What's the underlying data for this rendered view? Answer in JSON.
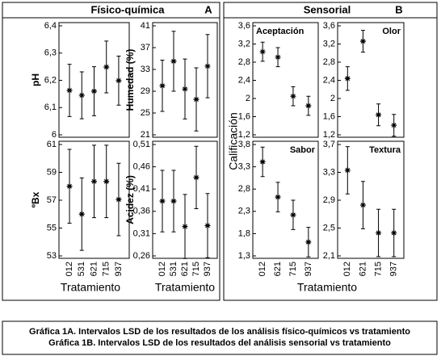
{
  "chart_data": [
    {
      "type": "errorbar",
      "y_label": "pH",
      "values": [
        6.163,
        6.145,
        6.16,
        6.249,
        6.199
      ],
      "errors": [
        0.096,
        0.086,
        0.09,
        0.095,
        0.09
      ],
      "ylim": [
        6,
        6.4
      ],
      "yticks": [
        6,
        {
          "value": 6.1,
          "label": "6,1"
        },
        {
          "value": 6.2,
          "label": "6,2"
        },
        {
          "value": 6.3,
          "label": "6,3"
        },
        {
          "value": 6.4,
          "label": "6,4"
        }
      ]
    },
    {
      "type": "errorbar",
      "y_label": "Humedad (%)",
      "values": [
        30.0,
        34.5,
        29.4,
        27.5,
        33.6
      ],
      "errors": [
        4.7,
        5.5,
        5.5,
        5.8,
        5.8
      ],
      "ylim": [
        21,
        41
      ],
      "yticks": [
        21,
        25,
        29,
        33,
        37,
        41
      ]
    },
    {
      "type": "errorbar",
      "y_label": "ºBx",
      "categories": [
        "012",
        "531",
        "621",
        "715",
        "937"
      ],
      "values": [
        58.0,
        56.0,
        58.35,
        58.35,
        57.05
      ],
      "errors": [
        2.65,
        2.6,
        2.6,
        2.6,
        2.6
      ],
      "ylim": [
        53,
        61
      ],
      "yticks": [
        53,
        55,
        57,
        59,
        61
      ]
    },
    {
      "type": "errorbar",
      "y_label": "Acidez (%)",
      "categories": [
        "012",
        "531",
        "621",
        "715",
        "937"
      ],
      "values": [
        0.383,
        0.383,
        0.326,
        0.436,
        0.328
      ],
      "errors": [
        0.069,
        0.069,
        0.072,
        0.07,
        0.072
      ],
      "ylim": [
        0.26,
        0.51
      ],
      "yticks": [
        {
          "value": 0.26,
          "label": "0,26"
        },
        {
          "value": 0.31,
          "label": "0,31"
        },
        {
          "value": 0.36,
          "label": "0,36"
        },
        {
          "value": 0.41,
          "label": "0,41"
        },
        {
          "value": 0.46,
          "label": "0,46"
        },
        {
          "value": 0.51,
          "label": "0,51"
        }
      ]
    },
    {
      "type": "errorbar",
      "title": "Aceptación",
      "values": [
        3.03,
        2.91,
        2.05,
        1.84
      ],
      "errors": [
        0.21,
        0.21,
        0.21,
        0.21
      ],
      "ylim": [
        1.2,
        3.6
      ],
      "yticks": [
        {
          "value": 1.2,
          "label": "1,2"
        },
        {
          "value": 1.6,
          "label": "1,6"
        },
        2,
        {
          "value": 2.4,
          "label": "2,4"
        },
        {
          "value": 2.8,
          "label": "2,8"
        },
        {
          "value": 3.2,
          "label": "3,2"
        },
        {
          "value": 3.6,
          "label": "3,6"
        }
      ]
    },
    {
      "type": "errorbar",
      "title": "Olor",
      "values": [
        2.44,
        3.26,
        1.64,
        1.41
      ],
      "errors": [
        0.26,
        0.24,
        0.24,
        0.24
      ],
      "ylim": [
        1.2,
        3.6
      ],
      "yticks": [
        {
          "value": 1.2,
          "label": "1,2"
        },
        {
          "value": 1.6,
          "label": "1,6"
        },
        2,
        {
          "value": 2.4,
          "label": "2,4"
        },
        {
          "value": 2.8,
          "label": "2,8"
        },
        {
          "value": 3.2,
          "label": "3,2"
        },
        {
          "value": 3.6,
          "label": "3,6"
        }
      ]
    },
    {
      "type": "errorbar",
      "title": "Sabor",
      "categories": [
        "012",
        "621",
        "715",
        "937"
      ],
      "values": [
        3.41,
        2.62,
        2.22,
        1.61
      ],
      "errors": [
        0.33,
        0.33,
        0.33,
        0.33
      ],
      "ylim": [
        1.3,
        3.8
      ],
      "yticks": [
        {
          "value": 1.3,
          "label": "1,3"
        },
        {
          "value": 1.8,
          "label": "1,8"
        },
        {
          "value": 2.3,
          "label": "2,3"
        },
        {
          "value": 2.8,
          "label": "2,8"
        },
        {
          "value": 3.3,
          "label": "3,3"
        },
        {
          "value": 3.8,
          "label": "3,8"
        }
      ]
    },
    {
      "type": "errorbar",
      "title": "Textura",
      "categories": [
        "012",
        "621",
        "715",
        "937"
      ],
      "values": [
        3.33,
        2.83,
        2.43,
        2.43
      ],
      "errors": [
        0.34,
        0.34,
        0.34,
        0.34
      ],
      "ylim": [
        2.1,
        3.7
      ],
      "yticks": [
        {
          "value": 2.1,
          "label": "2,1"
        },
        {
          "value": 2.5,
          "label": "2,5"
        },
        {
          "value": 2.9,
          "label": "2,9"
        },
        {
          "value": 3.3,
          "label": "3,3"
        },
        {
          "value": 3.7,
          "label": "3,7"
        }
      ]
    }
  ],
  "panel_groups": [
    {
      "title": "Físico-química",
      "letter": "A",
      "x_labels": [
        "Tratamiento",
        "Tratamiento"
      ]
    },
    {
      "title": "Sensorial",
      "letter": "B",
      "x_labels": [
        "Tratamiento"
      ],
      "y_label": "Calificación"
    }
  ],
  "caption": [
    "Gráfica 1A. Intervalos LSD de los resultados de los análisis físico-químicos vs tratamiento",
    "Gráfica 1B. Intervalos LSD de los resultados del análisis sensorial vs tratamiento"
  ]
}
